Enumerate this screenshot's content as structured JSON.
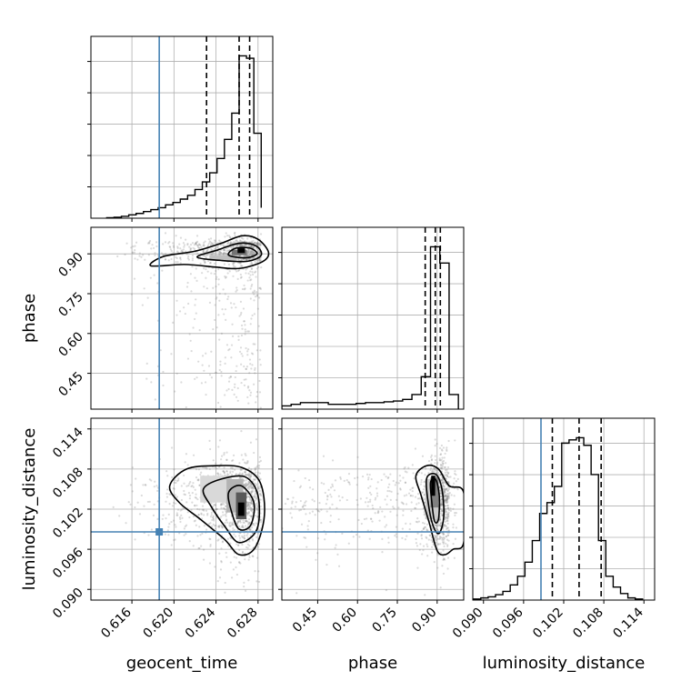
{
  "chart_data": {
    "type": "corner",
    "parameters": [
      "geocent_time",
      "phase",
      "luminosity_distance"
    ],
    "truths": {
      "geocent_time": 0.6186,
      "phase": null,
      "luminosity_distance": 0.0986
    },
    "truth_color": "#4682b4",
    "grid": true,
    "panels": [
      {
        "panel": "hist-geocent_time",
        "type": "histogram",
        "xlim": [
          0.6121,
          0.6294
        ],
        "x_ticks": [
          0.616,
          0.62,
          0.624,
          0.628
        ],
        "quantiles": [
          0.6231,
          0.6262,
          0.6272
        ],
        "bin_edges": [
          0.6136,
          0.6143,
          0.615,
          0.6157,
          0.6164,
          0.6171,
          0.6178,
          0.6185,
          0.6192,
          0.6199,
          0.6206,
          0.6213,
          0.622,
          0.6227,
          0.6234,
          0.6241,
          0.6248,
          0.6255,
          0.6262,
          0.6269,
          0.6276,
          0.6283
        ],
        "counts": [
          1,
          2,
          4,
          7,
          10,
          14,
          18,
          22,
          28,
          33,
          40,
          48,
          60,
          76,
          95,
          125,
          165,
          220,
          340,
          335,
          178,
          22
        ]
      },
      {
        "panel": "hist-phase",
        "type": "histogram",
        "xlim": [
          0.315,
          1.0
        ],
        "x_ticks": [
          0.45,
          0.6,
          0.75,
          0.9
        ],
        "quantiles": [
          0.855,
          0.893,
          0.912
        ],
        "bin_edges": [
          0.315,
          0.35,
          0.385,
          0.42,
          0.455,
          0.49,
          0.525,
          0.56,
          0.595,
          0.63,
          0.665,
          0.7,
          0.735,
          0.77,
          0.805,
          0.84,
          0.875,
          0.91,
          0.945,
          0.98
        ],
        "counts": [
          4,
          6,
          8,
          8,
          8,
          6,
          6,
          6,
          7,
          8,
          8,
          9,
          10,
          12,
          18,
          40,
          200,
          180,
          18
        ]
      },
      {
        "panel": "hist-luminosity_distance",
        "type": "histogram",
        "xlim": [
          0.0884,
          0.1156
        ],
        "x_ticks": [
          0.09,
          0.096,
          0.102,
          0.108,
          0.114
        ],
        "quantiles": [
          0.1003,
          0.1043,
          0.1076
        ],
        "bin_edges": [
          0.0885,
          0.0896,
          0.0907,
          0.0918,
          0.0929,
          0.094,
          0.0951,
          0.0962,
          0.0973,
          0.0984,
          0.0995,
          0.1006,
          0.1017,
          0.1028,
          0.1039,
          0.105,
          0.1061,
          0.1072,
          0.1083,
          0.1094,
          0.1105,
          0.1116,
          0.1127,
          0.1138
        ],
        "counts": [
          1,
          2,
          3,
          5,
          8,
          14,
          22,
          35,
          55,
          80,
          90,
          105,
          145,
          148,
          150,
          143,
          116,
          55,
          22,
          12,
          6,
          2,
          1
        ]
      },
      {
        "panel": "2d-geocent_time-phase",
        "type": "2d-kde",
        "x": "geocent_time",
        "y": "phase",
        "xlim": [
          0.6121,
          0.6294
        ],
        "ylim": [
          0.315,
          1.0
        ],
        "y_ticks": [
          0.45,
          0.6,
          0.75,
          0.9
        ],
        "density": [
          {
            "cx": 0.6247,
            "cy": 0.885,
            "w": 0.0026,
            "h": 0.022,
            "shade": 0.25
          },
          {
            "cx": 0.6262,
            "cy": 0.905,
            "w": 0.0014,
            "h": 0.02,
            "shade": 0.55
          },
          {
            "cx": 0.6264,
            "cy": 0.912,
            "w": 0.0007,
            "h": 0.018,
            "shade": 1.0
          }
        ],
        "contours": [
          [
            [
              0.6178,
              0.855
            ],
            [
              0.621,
              0.86
            ],
            [
              0.624,
              0.85
            ],
            [
              0.6262,
              0.845
            ],
            [
              0.6284,
              0.87
            ],
            [
              0.629,
              0.905
            ],
            [
              0.628,
              0.955
            ],
            [
              0.6265,
              0.968
            ],
            [
              0.6245,
              0.94
            ],
            [
              0.622,
              0.91
            ],
            [
              0.619,
              0.89
            ],
            [
              0.6178,
              0.855
            ]
          ],
          [
            [
              0.6222,
              0.888
            ],
            [
              0.6245,
              0.875
            ],
            [
              0.627,
              0.872
            ],
            [
              0.6283,
              0.895
            ],
            [
              0.6278,
              0.93
            ],
            [
              0.6262,
              0.94
            ],
            [
              0.6242,
              0.915
            ],
            [
              0.6222,
              0.888
            ]
          ],
          [
            [
              0.6252,
              0.895
            ],
            [
              0.6268,
              0.885
            ],
            [
              0.6279,
              0.9
            ],
            [
              0.6272,
              0.922
            ],
            [
              0.6258,
              0.92
            ],
            [
              0.6252,
              0.895
            ]
          ]
        ]
      },
      {
        "panel": "2d-geocent_time-luminosity_distance",
        "type": "2d-kde",
        "x": "geocent_time",
        "y": "luminosity_distance",
        "xlim": [
          0.6121,
          0.6294
        ],
        "ylim": [
          0.0884,
          0.1156
        ],
        "y_ticks": [
          0.09,
          0.096,
          0.102,
          0.108,
          0.114
        ],
        "truth_marker": [
          0.6186,
          0.0986
        ],
        "density": [
          {
            "cx": 0.624,
            "cy": 0.105,
            "w": 0.003,
            "h": 0.004,
            "shade": 0.15
          },
          {
            "cx": 0.6258,
            "cy": 0.104,
            "w": 0.0016,
            "h": 0.005,
            "shade": 0.3
          },
          {
            "cx": 0.6264,
            "cy": 0.1025,
            "w": 0.001,
            "h": 0.004,
            "shade": 0.65
          },
          {
            "cx": 0.6264,
            "cy": 0.102,
            "w": 0.0006,
            "h": 0.002,
            "shade": 1.0
          }
        ],
        "contours": [
          [
            [
              0.6196,
              0.1055
            ],
            [
              0.6212,
              0.108
            ],
            [
              0.624,
              0.1085
            ],
            [
              0.6265,
              0.1082
            ],
            [
              0.6282,
              0.106
            ],
            [
              0.6286,
              0.101
            ],
            [
              0.6277,
              0.0962
            ],
            [
              0.6262,
              0.0952
            ],
            [
              0.6248,
              0.0975
            ],
            [
              0.6225,
              0.1005
            ],
            [
              0.6205,
              0.103
            ],
            [
              0.6196,
              0.1055
            ]
          ],
          [
            [
              0.6228,
              0.105
            ],
            [
              0.6245,
              0.1065
            ],
            [
              0.6268,
              0.1068
            ],
            [
              0.628,
              0.104
            ],
            [
              0.6279,
              0.099
            ],
            [
              0.6262,
              0.097
            ],
            [
              0.6248,
              0.0995
            ],
            [
              0.6235,
              0.1025
            ],
            [
              0.6228,
              0.105
            ]
          ],
          [
            [
              0.6252,
              0.1045
            ],
            [
              0.6264,
              0.1055
            ],
            [
              0.6276,
              0.103
            ],
            [
              0.6273,
              0.0996
            ],
            [
              0.6262,
              0.099
            ],
            [
              0.6255,
              0.1015
            ],
            [
              0.6252,
              0.1045
            ]
          ]
        ]
      },
      {
        "panel": "2d-phase-luminosity_distance",
        "type": "2d-kde",
        "x": "phase",
        "y": "luminosity_distance",
        "xlim": [
          0.315,
          1.0
        ],
        "ylim": [
          0.0884,
          0.1156
        ],
        "density": [
          {
            "cx": 0.88,
            "cy": 0.1035,
            "w": 0.05,
            "h": 0.006,
            "shade": 0.2
          },
          {
            "cx": 0.89,
            "cy": 0.1045,
            "w": 0.03,
            "h": 0.0045,
            "shade": 0.5
          },
          {
            "cx": 0.885,
            "cy": 0.1055,
            "w": 0.015,
            "h": 0.003,
            "shade": 1.0
          }
        ],
        "contours": [
          [
            [
              0.82,
              0.107
            ],
            [
              0.86,
              0.1085
            ],
            [
              0.905,
              0.108
            ],
            [
              0.945,
              0.1055
            ],
            [
              1.0,
              0.1045
            ],
            [
              1.0,
              0.097
            ],
            [
              0.96,
              0.096
            ],
            [
              0.93,
              0.0952
            ],
            [
              0.9,
              0.0958
            ],
            [
              0.87,
              0.1
            ],
            [
              0.84,
              0.104
            ],
            [
              0.82,
              0.107
            ]
          ],
          [
            [
              0.86,
              0.1065
            ],
            [
              0.895,
              0.1072
            ],
            [
              0.918,
              0.105
            ],
            [
              0.925,
              0.101
            ],
            [
              0.91,
              0.0985
            ],
            [
              0.89,
              0.099
            ],
            [
              0.87,
              0.102
            ],
            [
              0.86,
              0.1065
            ]
          ],
          [
            [
              0.875,
              0.106
            ],
            [
              0.895,
              0.1064
            ],
            [
              0.908,
              0.104
            ],
            [
              0.905,
              0.1005
            ],
            [
              0.89,
              0.1002
            ],
            [
              0.88,
              0.103
            ],
            [
              0.875,
              0.106
            ]
          ]
        ]
      }
    ]
  }
}
